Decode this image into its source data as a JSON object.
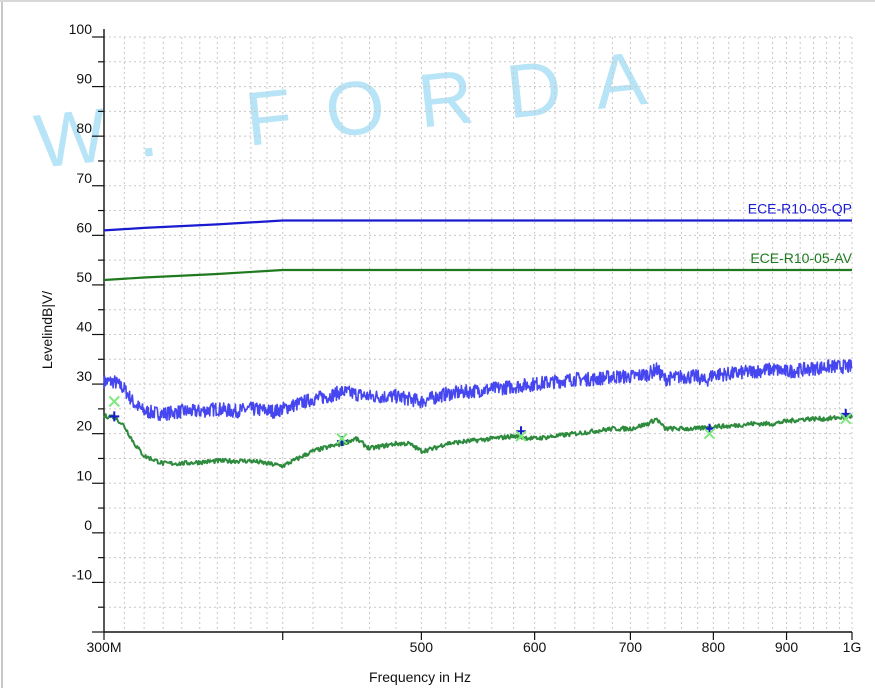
{
  "watermark": "W. FORDA",
  "colors": {
    "qp_limit": "#1a1ad0",
    "av_limit": "#1f7a1f",
    "peak_trace": "#4646f0",
    "avg_trace": "#2e8b3e",
    "qp_marker": "#1a1ad0",
    "av_marker": "#7ee87e",
    "grid": "#c8c8c8",
    "watermark": "#9fdcf4"
  },
  "chart_data": {
    "type": "line",
    "title": "",
    "xlabel": "Frequency in Hz",
    "ylabel": "LevelindB|V/",
    "x_scale": "log",
    "xlim": [
      300,
      1000
    ],
    "ylim": [
      -20,
      100
    ],
    "grid": true,
    "y_ticks": [
      100,
      90,
      80,
      70,
      60,
      50,
      40,
      30,
      20,
      10,
      0,
      -10
    ],
    "x_ticks": [
      {
        "value": 300,
        "label": "300M"
      },
      {
        "value": 400,
        "label": ""
      },
      {
        "value": 500,
        "label": "500"
      },
      {
        "value": 600,
        "label": "600"
      },
      {
        "value": 700,
        "label": "700"
      },
      {
        "value": 800,
        "label": "800"
      },
      {
        "value": 900,
        "label": "900"
      },
      {
        "value": 1000,
        "label": "1G"
      }
    ],
    "series": [
      {
        "name": "ECE-R10-05-QP",
        "role": "limit",
        "x": [
          300,
          320,
          360,
          400,
          1000
        ],
        "y": [
          61,
          61.5,
          62.2,
          63,
          63
        ]
      },
      {
        "name": "ECE-R10-05-AV",
        "role": "limit",
        "x": [
          300,
          320,
          360,
          400,
          1000
        ],
        "y": [
          51,
          51.5,
          52.2,
          53,
          53
        ]
      },
      {
        "role": "peak",
        "x": [
          300,
          305,
          310,
          315,
          320,
          330,
          340,
          350,
          360,
          370,
          380,
          395,
          410,
          420,
          430,
          440,
          450,
          460,
          470,
          480,
          490,
          500,
          520,
          540,
          560,
          580,
          600,
          620,
          640,
          660,
          680,
          700,
          720,
          730,
          740,
          760,
          780,
          790,
          800,
          820,
          850,
          880,
          900,
          930,
          960,
          1000
        ],
        "y": [
          30.5,
          30.5,
          29,
          26,
          24.5,
          24,
          24.5,
          24.5,
          25,
          24.5,
          25,
          24.5,
          26,
          27,
          27.5,
          28.5,
          28,
          27.5,
          27.5,
          27.5,
          27,
          26.5,
          28,
          28.5,
          29,
          29.5,
          30,
          30.5,
          31,
          31,
          31.5,
          31.5,
          32,
          33,
          31,
          31.5,
          31.5,
          30.5,
          32,
          32,
          32.5,
          33,
          32.5,
          33,
          33.5,
          33.5
        ]
      },
      {
        "role": "average",
        "x": [
          300,
          305,
          310,
          315,
          320,
          330,
          340,
          360,
          380,
          400,
          410,
          420,
          440,
          450,
          460,
          470,
          480,
          490,
          500,
          510,
          520,
          540,
          560,
          580,
          600,
          620,
          640,
          660,
          680,
          700,
          720,
          730,
          740,
          760,
          780,
          800,
          820,
          850,
          880,
          900,
          930,
          960,
          1000
        ],
        "y": [
          23.5,
          23.5,
          21.5,
          18,
          15.5,
          14,
          14,
          14.5,
          14.5,
          13.5,
          15,
          16.5,
          18,
          19,
          17,
          17.5,
          18,
          18,
          16.5,
          17,
          18,
          18.5,
          19,
          19.5,
          19,
          19.5,
          20,
          20.5,
          21,
          21,
          22,
          23,
          21,
          21,
          21,
          21.5,
          21.5,
          22,
          22,
          22.5,
          23,
          23,
          23.5
        ]
      }
    ],
    "markers": [
      {
        "type": "qp",
        "x": 305,
        "y": 23.5
      },
      {
        "type": "av",
        "x": 305,
        "y": 26.5
      },
      {
        "type": "qp",
        "x": 440,
        "y": 18.5
      },
      {
        "type": "av",
        "x": 440,
        "y": 19
      },
      {
        "type": "qp",
        "x": 587,
        "y": 20.5
      },
      {
        "type": "av",
        "x": 587,
        "y": 19.5
      },
      {
        "type": "qp",
        "x": 795,
        "y": 21
      },
      {
        "type": "av",
        "x": 795,
        "y": 20
      },
      {
        "type": "qp",
        "x": 990,
        "y": 24
      },
      {
        "type": "av",
        "x": 990,
        "y": 23
      }
    ]
  }
}
